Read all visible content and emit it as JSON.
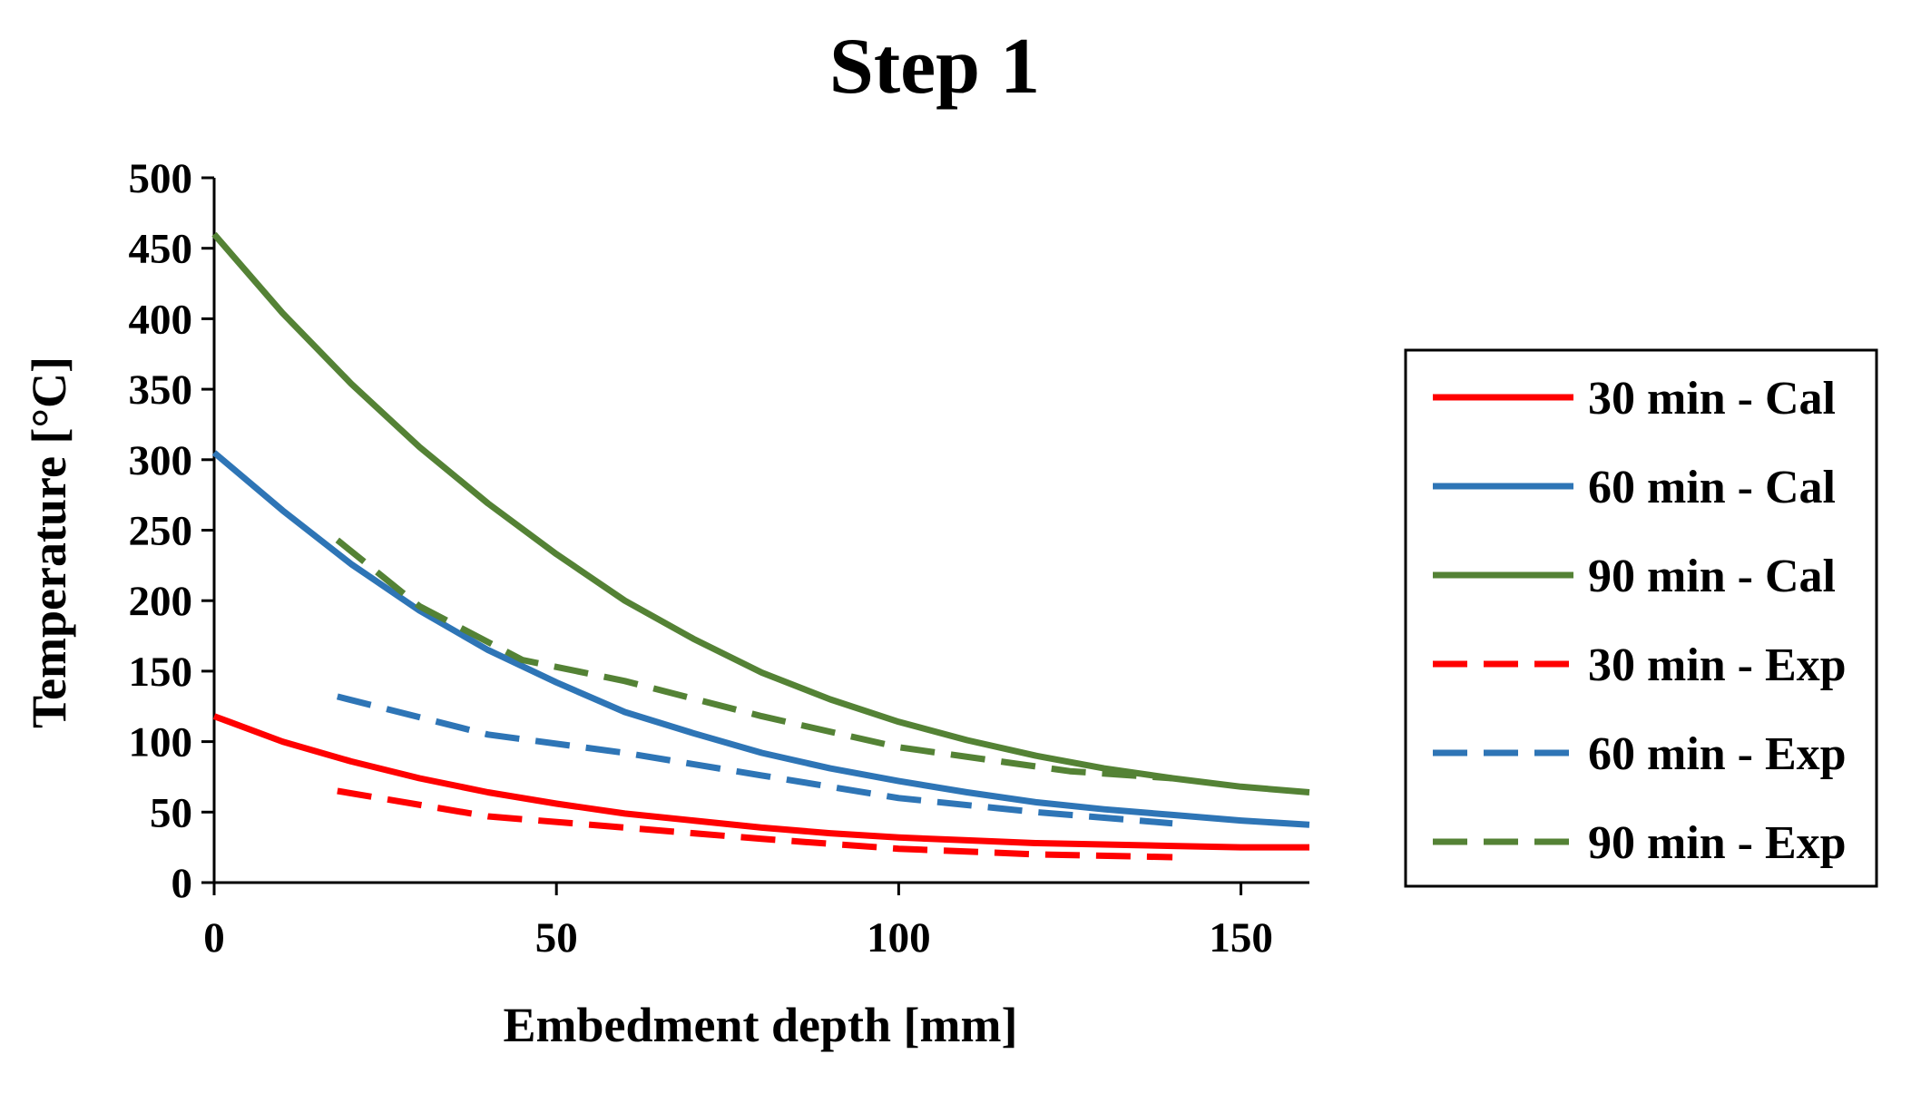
{
  "chart_data": {
    "type": "line",
    "title": "Step 1",
    "xlabel": "Embedment depth [mm]",
    "ylabel": "Temperature  [°C]",
    "xlim": [
      0,
      160
    ],
    "ylim": [
      0,
      500
    ],
    "xticks": [
      0,
      50,
      100,
      150
    ],
    "yticks": [
      0,
      50,
      100,
      150,
      200,
      250,
      300,
      350,
      400,
      450,
      500
    ],
    "grid": false,
    "legend_position": "right",
    "series": [
      {
        "name": "30 min - Cal",
        "color": "#ff0000",
        "dash": "solid",
        "x": [
          0,
          10,
          20,
          30,
          40,
          50,
          60,
          70,
          80,
          90,
          100,
          110,
          120,
          130,
          140,
          150,
          160
        ],
        "y": [
          118,
          100,
          86,
          74,
          64,
          56,
          49,
          44,
          39,
          35,
          32,
          30,
          28,
          27,
          26,
          25,
          25
        ]
      },
      {
        "name": "60 min - Cal",
        "color": "#2e75b6",
        "dash": "solid",
        "x": [
          0,
          10,
          20,
          30,
          40,
          50,
          60,
          70,
          80,
          90,
          100,
          110,
          120,
          130,
          140,
          150,
          160
        ],
        "y": [
          305,
          264,
          226,
          193,
          165,
          142,
          121,
          106,
          92,
          81,
          72,
          64,
          57,
          52,
          48,
          44,
          41
        ]
      },
      {
        "name": "90 min - Cal",
        "color": "#548235",
        "dash": "solid",
        "x": [
          0,
          10,
          20,
          30,
          40,
          50,
          60,
          70,
          80,
          90,
          100,
          110,
          120,
          130,
          140,
          150,
          160
        ],
        "y": [
          460,
          404,
          354,
          309,
          269,
          233,
          200,
          173,
          149,
          130,
          114,
          101,
          90,
          81,
          74,
          68,
          64
        ]
      },
      {
        "name": "30 min - Exp",
        "color": "#ff0000",
        "dash": "dashed",
        "x": [
          18,
          40,
          60,
          80,
          100,
          120,
          140
        ],
        "y": [
          65,
          47,
          39,
          31,
          24,
          20,
          18
        ]
      },
      {
        "name": "60 min - Exp",
        "color": "#2e75b6",
        "dash": "dashed",
        "x": [
          18,
          40,
          60,
          80,
          100,
          120,
          140
        ],
        "y": [
          132,
          105,
          92,
          76,
          60,
          50,
          42
        ]
      },
      {
        "name": "90 min - Exp",
        "color": "#548235",
        "dash": "dashed",
        "x": [
          18,
          30,
          45,
          60,
          80,
          100,
          125,
          140
        ],
        "y": [
          243,
          196,
          158,
          143,
          118,
          96,
          79,
          74
        ]
      }
    ]
  }
}
